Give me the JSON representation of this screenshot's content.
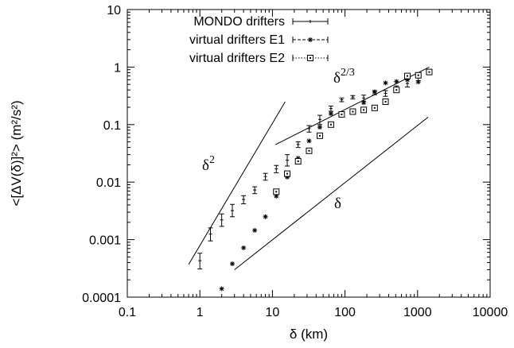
{
  "chart_data": {
    "type": "scatter",
    "xscale": "log",
    "yscale": "log",
    "xlim": [
      0.1,
      10000
    ],
    "ylim": [
      0.0001,
      10
    ],
    "xlabel": "δ (km)",
    "ylabel": "<[ΔV(δ)]²> (m²/s²)",
    "xticks": [
      "0.1",
      "1",
      "10",
      "100",
      "1000",
      "10000"
    ],
    "yticks": [
      "0.0001",
      "0.001",
      "0.01",
      "0.1",
      "1",
      "10"
    ],
    "legend_position": "top-left",
    "series": [
      {
        "name": "MONDO drifters",
        "marker": "errorbar",
        "points": [
          {
            "x": 1.0,
            "y": 0.00043,
            "ylo": 0.00031,
            "yhi": 0.00058
          },
          {
            "x": 1.4,
            "y": 0.00125,
            "ylo": 0.00095,
            "yhi": 0.0016
          },
          {
            "x": 2.0,
            "y": 0.0022,
            "ylo": 0.0017,
            "yhi": 0.0028
          },
          {
            "x": 2.8,
            "y": 0.0032,
            "ylo": 0.0025,
            "yhi": 0.0041
          },
          {
            "x": 4.0,
            "y": 0.005,
            "ylo": 0.0042,
            "yhi": 0.0058
          },
          {
            "x": 5.7,
            "y": 0.0073,
            "ylo": 0.0063,
            "yhi": 0.0083
          },
          {
            "x": 8.0,
            "y": 0.0125,
            "ylo": 0.0108,
            "yhi": 0.0142
          },
          {
            "x": 11.3,
            "y": 0.017,
            "ylo": 0.0145,
            "yhi": 0.0195
          },
          {
            "x": 16.0,
            "y": 0.024,
            "ylo": 0.019,
            "yhi": 0.03
          },
          {
            "x": 22.6,
            "y": 0.045,
            "ylo": 0.04,
            "yhi": 0.05
          },
          {
            "x": 32.0,
            "y": 0.085,
            "ylo": 0.074,
            "yhi": 0.096
          },
          {
            "x": 45.0,
            "y": 0.123,
            "ylo": 0.1,
            "yhi": 0.145
          },
          {
            "x": 64.0,
            "y": 0.19,
            "ylo": 0.17,
            "yhi": 0.21
          },
          {
            "x": 90.0,
            "y": 0.27,
            "ylo": 0.25,
            "yhi": 0.29
          },
          {
            "x": 128.0,
            "y": 0.3,
            "ylo": 0.28,
            "yhi": 0.32
          },
          {
            "x": 181.0,
            "y": 0.29,
            "ylo": 0.255,
            "yhi": 0.325
          },
          {
            "x": 256.0,
            "y": 0.36,
            "ylo": 0.33,
            "yhi": 0.39
          },
          {
            "x": 362.0,
            "y": 0.35,
            "ylo": 0.31,
            "yhi": 0.39
          },
          {
            "x": 512.0,
            "y": 0.42,
            "ylo": 0.37,
            "yhi": 0.47
          },
          {
            "x": 724.0,
            "y": 0.52,
            "ylo": 0.45,
            "yhi": 0.6
          },
          {
            "x": 1024.0,
            "y": 0.65,
            "ylo": 0.58,
            "yhi": 0.72
          }
        ]
      },
      {
        "name": "virtual drifters E1",
        "marker": "asterisk",
        "points": [
          {
            "x": 2.0,
            "y": 0.00014
          },
          {
            "x": 2.8,
            "y": 0.00038
          },
          {
            "x": 4.0,
            "y": 0.00072
          },
          {
            "x": 5.7,
            "y": 0.00145
          },
          {
            "x": 8.0,
            "y": 0.0025
          },
          {
            "x": 11.3,
            "y": 0.0057
          },
          {
            "x": 16.0,
            "y": 0.0122
          },
          {
            "x": 22.6,
            "y": 0.026
          },
          {
            "x": 32.0,
            "y": 0.052
          },
          {
            "x": 45.0,
            "y": 0.09
          },
          {
            "x": 64.0,
            "y": 0.155
          },
          {
            "x": 90.0,
            "y": 0.155
          },
          {
            "x": 128.0,
            "y": 0.165
          },
          {
            "x": 181.0,
            "y": 0.24
          },
          {
            "x": 256.0,
            "y": 0.37
          },
          {
            "x": 362.0,
            "y": 0.53
          },
          {
            "x": 512.0,
            "y": 0.56
          },
          {
            "x": 724.0,
            "y": 0.6
          },
          {
            "x": 1024.0,
            "y": 0.55
          }
        ]
      },
      {
        "name": "virtual drifters E2",
        "marker": "box",
        "points": [
          {
            "x": 11.3,
            "y": 0.0068
          },
          {
            "x": 16.0,
            "y": 0.014
          },
          {
            "x": 22.6,
            "y": 0.023
          },
          {
            "x": 32.0,
            "y": 0.035
          },
          {
            "x": 45.0,
            "y": 0.064
          },
          {
            "x": 64.0,
            "y": 0.1
          },
          {
            "x": 90.0,
            "y": 0.15
          },
          {
            "x": 128.0,
            "y": 0.168
          },
          {
            "x": 181.0,
            "y": 0.18
          },
          {
            "x": 256.0,
            "y": 0.195
          },
          {
            "x": 362.0,
            "y": 0.25
          },
          {
            "x": 512.0,
            "y": 0.4
          },
          {
            "x": 724.0,
            "y": 0.7
          },
          {
            "x": 1024.0,
            "y": 0.72
          },
          {
            "x": 1448.0,
            "y": 0.82
          }
        ]
      }
    ],
    "reference_lines": [
      {
        "label": "δ",
        "label_sup": "2",
        "x1": 0.7,
        "y1": 0.00037,
        "x2": 15.0,
        "y2": 0.25
      },
      {
        "label": "δ",
        "label_sup": "",
        "x1": 3.0,
        "y1": 0.0003,
        "x2": 1400.0,
        "y2": 0.135
      },
      {
        "label": "δ",
        "label_sup": "2/3",
        "x1": 11.0,
        "y1": 0.0448,
        "x2": 1450.0,
        "y2": 1.0
      }
    ]
  }
}
